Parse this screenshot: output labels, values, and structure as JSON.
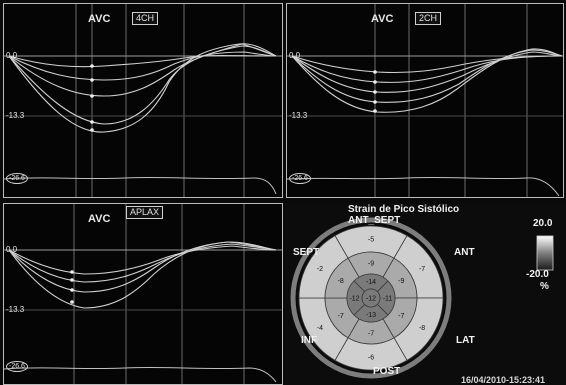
{
  "panels": [
    {
      "id": "4ch",
      "marker": "AVC",
      "view": "4CH",
      "y_top": "0.0",
      "y_mid": "-13.3",
      "y_bottom": "-26.6"
    },
    {
      "id": "2ch",
      "marker": "AVC",
      "view": "2CH",
      "y_top": "0.0",
      "y_mid": "-13.3",
      "y_bottom": "-26.6"
    },
    {
      "id": "aplax",
      "marker": "AVC",
      "view": "APLAX",
      "y_top": "0.0",
      "y_mid": "-13.3",
      "y_bottom": "-26.6"
    }
  ],
  "bullseye": {
    "title": "Strain de Pico Sistólico",
    "walls": {
      "ant_sept": "ANT_SEPT",
      "ant": "ANT",
      "sept": "SEPT",
      "inf": "INF",
      "lat": "LAT",
      "post": "POST"
    },
    "basal": [
      "-5",
      "-7",
      "-8",
      "-6",
      "-4",
      "-2"
    ],
    "mid": [
      "-9",
      "-9",
      "-7",
      "-7",
      "-7",
      "-8"
    ],
    "apical": [
      "-14",
      "-11",
      "-13",
      "-12"
    ],
    "apex": "-12",
    "scale_max": "20.0",
    "scale_min": "-20.0",
    "scale_unit": "%",
    "colors": {
      "basal": "#cfcfcf",
      "mid": "#aaaaaa",
      "apical": "#7a7a7a",
      "ring": "#7d7d7d"
    }
  },
  "timestamp": "16/04/2010-15:23:41"
}
